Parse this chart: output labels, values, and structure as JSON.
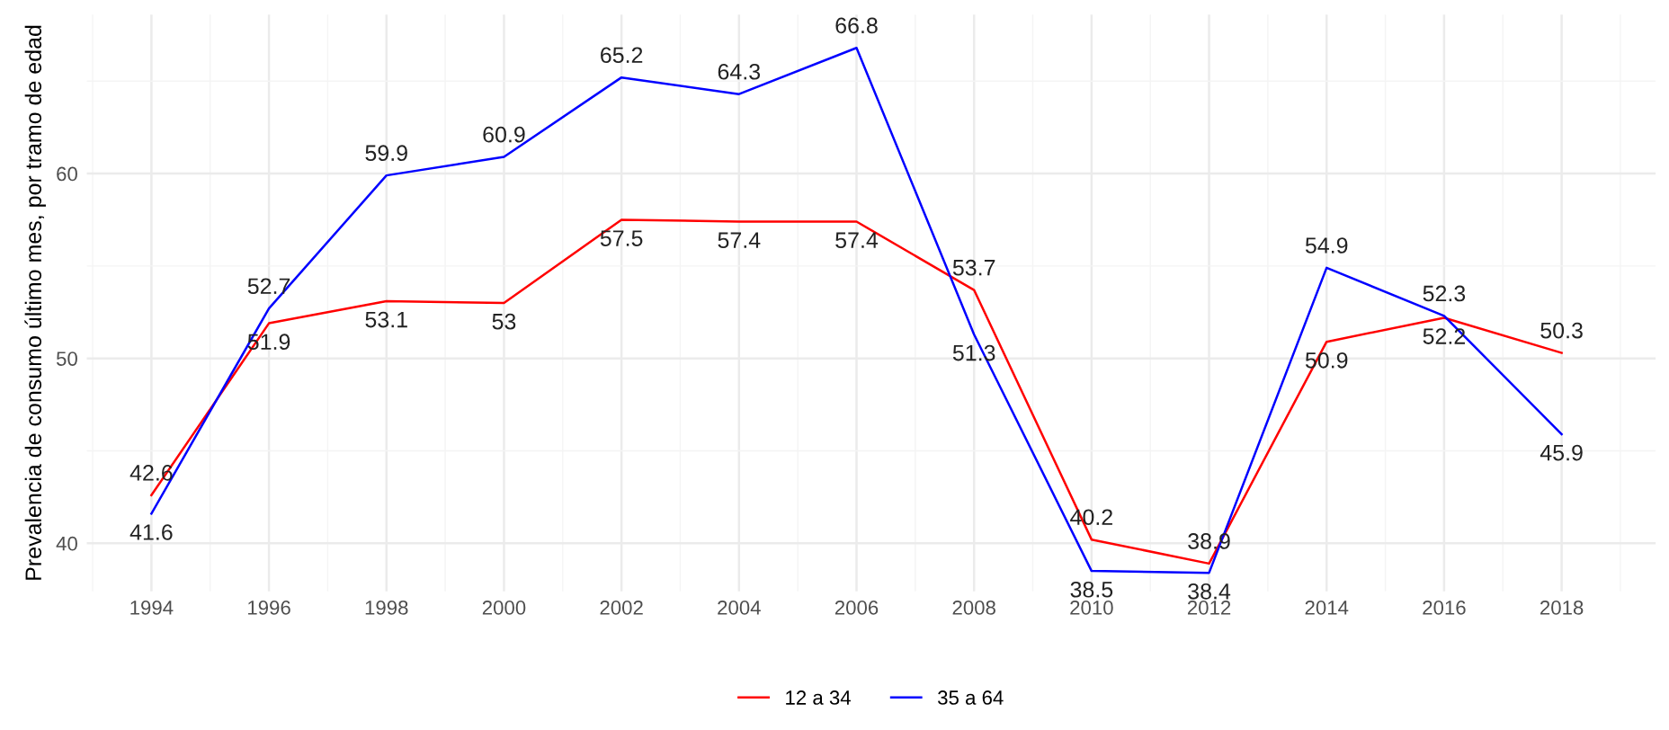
{
  "chart_data": {
    "type": "line",
    "ylabel": "Prevalencia de consumo último mes, por tramo de edad",
    "x": [
      1994,
      1996,
      1998,
      2000,
      2002,
      2004,
      2006,
      2008,
      2010,
      2012,
      2014,
      2016,
      2018
    ],
    "series": [
      {
        "name": "12 a 34",
        "color": "#ff0000",
        "values": [
          42.6,
          51.9,
          53.1,
          53,
          57.5,
          57.4,
          57.4,
          53.7,
          40.2,
          38.9,
          50.9,
          52.2,
          50.3
        ]
      },
      {
        "name": "35 a 64",
        "color": "#0000ff",
        "values": [
          41.6,
          52.7,
          59.9,
          60.9,
          65.2,
          64.3,
          66.8,
          51.3,
          38.5,
          38.4,
          54.9,
          52.3,
          45.9
        ]
      }
    ],
    "xlim": [
      1992.9,
      2019.6
    ],
    "xticks": [
      1994,
      1996,
      1998,
      2000,
      2002,
      2004,
      2006,
      2008,
      2010,
      2012,
      2014,
      2016,
      2018
    ],
    "ylim": [
      37.4,
      68.6
    ],
    "yticks": [
      40,
      50,
      60
    ],
    "data_labels": true,
    "grid": true,
    "legend": "bottom"
  }
}
